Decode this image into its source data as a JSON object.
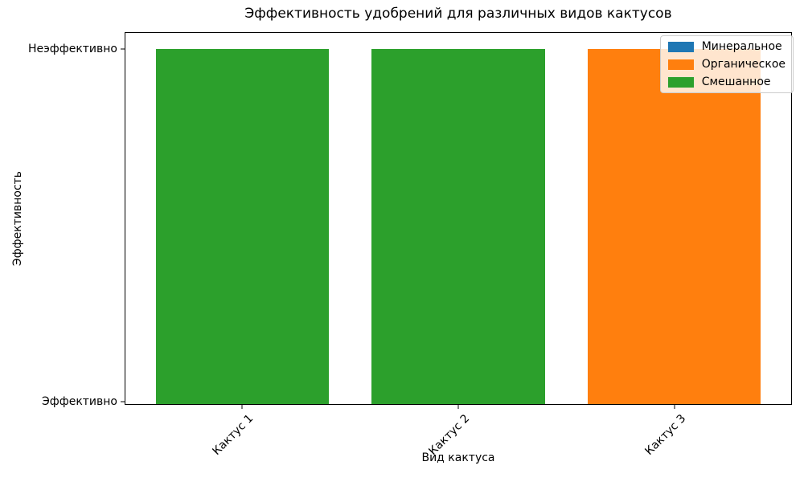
{
  "chart_data": {
    "type": "bar",
    "title": "Эффективность удобрений для различных видов кактусов",
    "xlabel": "Вид кактуса",
    "ylabel": "Эффективность",
    "categories": [
      "Кактус 1",
      "Кактус 2",
      "Кактус 3"
    ],
    "y_axis": {
      "type": "categorical",
      "tick_labels": [
        "Эффективно",
        "Неэффективно"
      ],
      "grid": false
    },
    "legend": {
      "position": "upper right",
      "entries": [
        {
          "label": "Минеральное",
          "color": "#1f77b4"
        },
        {
          "label": "Органическое",
          "color": "#ff7f0e"
        },
        {
          "label": "Смешанное",
          "color": "#2ca02c"
        }
      ]
    },
    "bars": [
      {
        "category": "Кактус 1",
        "series": "Смешанное",
        "value": "Неэффективно",
        "color": "#2ca02c"
      },
      {
        "category": "Кактус 2",
        "series": "Смешанное",
        "value": "Неэффективно",
        "color": "#2ca02c"
      },
      {
        "category": "Кактус 3",
        "series": "Органическое",
        "value": "Неэффективно",
        "color": "#ff7f0e"
      }
    ],
    "background": "#ffffff"
  }
}
